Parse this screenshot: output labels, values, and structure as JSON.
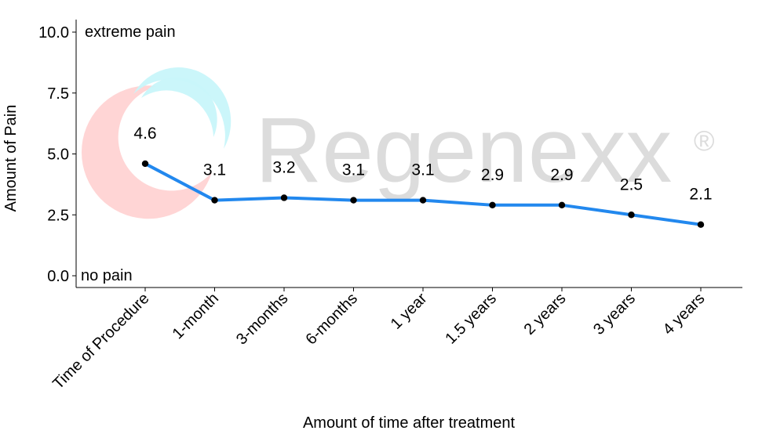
{
  "chart_data": {
    "type": "line",
    "categories": [
      "Time of Procedure",
      "1-month",
      "3-months",
      "6-months",
      "1 year",
      "1.5 years",
      "2 years",
      "3 years",
      "4 years"
    ],
    "values": [
      4.6,
      3.1,
      3.2,
      3.1,
      3.1,
      2.9,
      2.9,
      2.5,
      2.1
    ],
    "data_labels": [
      "4.6",
      "3.1",
      "3.2",
      "3.1",
      "3.1",
      "2.9",
      "2.9",
      "2.5",
      "2.1"
    ],
    "xlabel": "Amount of time after treatment",
    "ylabel": "Amount of Pain",
    "ylim": [
      -0.5,
      10.5
    ],
    "yticks": [
      0,
      2.5,
      5,
      7.5,
      10
    ],
    "ytick_labels": [
      "0.0",
      "2.5",
      "5.0",
      "7.5",
      "10.0"
    ],
    "annotations": {
      "top": "extreme pain",
      "bottom": "no pain"
    },
    "grid": false,
    "line_color": "#2288ee",
    "point_color": "#000000"
  },
  "watermark": {
    "text": "Regenexx",
    "registered": "®",
    "colors": {
      "text": "#dcdcdc",
      "swirl_red": "#ffd0d0",
      "swirl_cyan": "#c8f6fa"
    }
  }
}
